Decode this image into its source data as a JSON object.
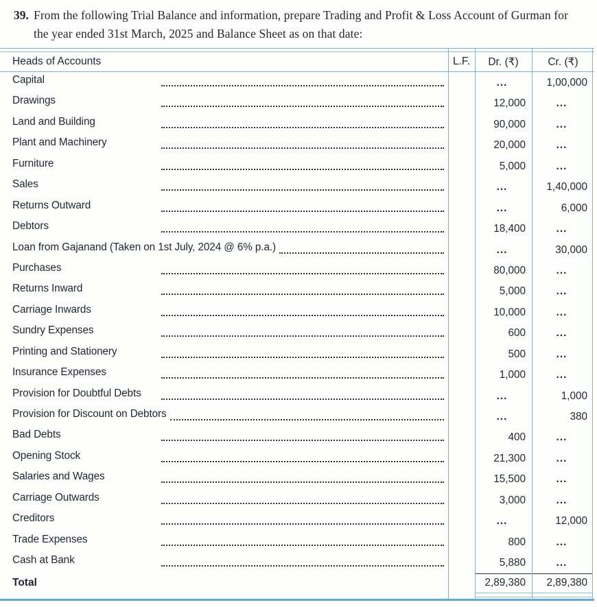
{
  "question": {
    "number": "39.",
    "text": "From the following Trial Balance and information, prepare Trading and Profit & Loss Account of Gurman for the year ended 31st March, 2025 and Balance Sheet as on that date:"
  },
  "table": {
    "headers": {
      "accounts": "Heads of Accounts",
      "lf": "L.F.",
      "dr": "Dr. (₹)",
      "cr": "Cr. (₹)"
    },
    "rows": [
      {
        "account": "Capital",
        "dr": "...",
        "cr": "1,00,000"
      },
      {
        "account": "Drawings",
        "dr": "12,000",
        "cr": "..."
      },
      {
        "account": "Land and Building",
        "dr": "90,000",
        "cr": "..."
      },
      {
        "account": "Plant and Machinery",
        "dr": "20,000",
        "cr": "..."
      },
      {
        "account": "Furniture",
        "dr": "5,000",
        "cr": "..."
      },
      {
        "account": "Sales",
        "dr": "...",
        "cr": "1,40,000"
      },
      {
        "account": "Returns Outward",
        "dr": "...",
        "cr": "6,000"
      },
      {
        "account": "Debtors",
        "dr": "18,400",
        "cr": "..."
      },
      {
        "account": "Loan from Gajanand (Taken on 1st July, 2024 @ 6% p.a.)",
        "dr": "...",
        "cr": "30,000"
      },
      {
        "account": "Purchases",
        "dr": "80,000",
        "cr": "..."
      },
      {
        "account": "Returns Inward",
        "dr": "5,000",
        "cr": "..."
      },
      {
        "account": "Carriage Inwards",
        "dr": "10,000",
        "cr": "..."
      },
      {
        "account": "Sundry Expenses",
        "dr": "600",
        "cr": "..."
      },
      {
        "account": "Printing and Stationery",
        "dr": "500",
        "cr": "..."
      },
      {
        "account": "Insurance Expenses",
        "dr": "1,000",
        "cr": "..."
      },
      {
        "account": "Provision for Doubtful Debts",
        "dr": "...",
        "cr": "1,000"
      },
      {
        "account": "Provision for Discount on Debtors",
        "dr": "...",
        "cr": "380"
      },
      {
        "account": "Bad Debts",
        "dr": "400",
        "cr": "..."
      },
      {
        "account": "Opening Stock",
        "dr": "21,300",
        "cr": "..."
      },
      {
        "account": "Salaries and Wages",
        "dr": "15,500",
        "cr": "..."
      },
      {
        "account": "Carriage Outwards",
        "dr": "3,000",
        "cr": "..."
      },
      {
        "account": "Creditors",
        "dr": "...",
        "cr": "12,000"
      },
      {
        "account": "Trade Expenses",
        "dr": "800",
        "cr": "..."
      },
      {
        "account": "Cash at Bank",
        "dr": "5,880",
        "cr": "..."
      }
    ],
    "total": {
      "label": "Total",
      "dr": "2,89,380",
      "cr": "2,89,380"
    }
  },
  "colors": {
    "rule_blue": "#74b4d7",
    "ink": "#1d2733",
    "dark_rule": "#2c3744"
  }
}
